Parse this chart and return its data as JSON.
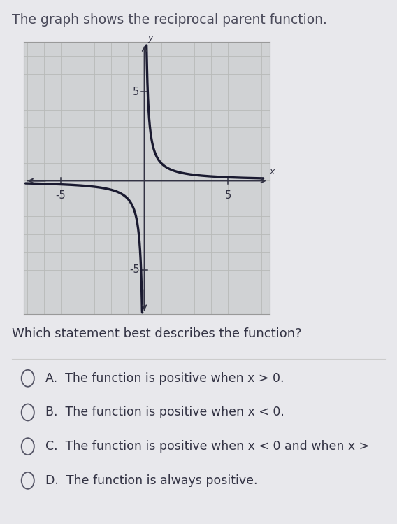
{
  "title": "The graph shows the reciprocal parent function.",
  "title_fontsize": 13.5,
  "title_color": "#4a4a5a",
  "page_bg": "#e8e8ec",
  "graph_bg": "#d0d2d4",
  "grid_color": "#b8bab8",
  "axis_color": "#333344",
  "curve_color": "#1a1a30",
  "curve_linewidth": 2.4,
  "xlim": [
    -7.2,
    7.5
  ],
  "ylim": [
    -7.5,
    7.8
  ],
  "tick_fontsize": 10.5,
  "question": "Which statement best describes the function?",
  "question_fontsize": 13,
  "question_color": "#333344",
  "options": [
    "A.  The function is positive when x > 0.",
    "B.  The function is positive when x < 0.",
    "C.  The function is positive when x < 0 and when x >",
    "D.  The function is always positive."
  ],
  "option_fontsize": 12.5,
  "option_color": "#333344",
  "x_label": "x",
  "y_label": "y",
  "separator_color": "#cccccc"
}
